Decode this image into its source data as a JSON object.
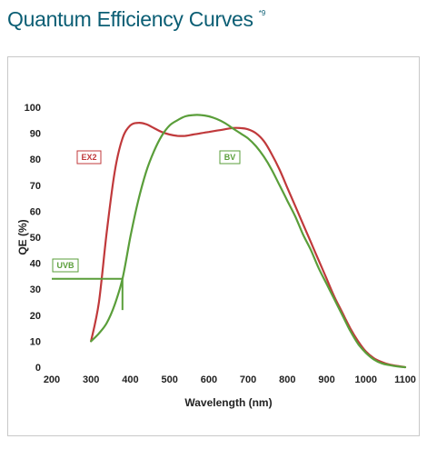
{
  "heading": {
    "title": "Quantum Efficiency Curves",
    "superscript": "*9"
  },
  "colors": {
    "ex2": "#c0393b",
    "bv": "#5a9e3a",
    "uvb": "#5a9e3a",
    "title": "#0b5e74"
  },
  "chart_data": {
    "type": "line",
    "title": "Quantum Efficiency Curves",
    "xlabel": "Wavelength (nm)",
    "ylabel": "QE (%)",
    "xlim": [
      200,
      1100
    ],
    "ylim": [
      0,
      100
    ],
    "xticks": [
      200,
      300,
      400,
      500,
      600,
      700,
      800,
      900,
      1000,
      1100
    ],
    "yticks": [
      0,
      10,
      20,
      30,
      40,
      50,
      60,
      70,
      80,
      90,
      100
    ],
    "grid": false,
    "series": [
      {
        "name": "EX2",
        "color": "#c0393b",
        "points": [
          [
            300,
            10
          ],
          [
            320,
            25
          ],
          [
            340,
            52
          ],
          [
            360,
            75
          ],
          [
            380,
            88
          ],
          [
            400,
            93
          ],
          [
            420,
            94
          ],
          [
            440,
            93.5
          ],
          [
            460,
            92
          ],
          [
            480,
            90.5
          ],
          [
            500,
            89.5
          ],
          [
            520,
            89
          ],
          [
            540,
            89
          ],
          [
            560,
            89.5
          ],
          [
            580,
            90
          ],
          [
            600,
            90.5
          ],
          [
            620,
            91
          ],
          [
            640,
            91.5
          ],
          [
            660,
            92
          ],
          [
            680,
            92
          ],
          [
            700,
            91.5
          ],
          [
            720,
            90
          ],
          [
            740,
            87
          ],
          [
            760,
            82
          ],
          [
            780,
            76
          ],
          [
            800,
            69
          ],
          [
            820,
            62
          ],
          [
            840,
            55
          ],
          [
            860,
            48
          ],
          [
            880,
            41
          ],
          [
            900,
            34
          ],
          [
            920,
            27
          ],
          [
            940,
            21
          ],
          [
            960,
            15
          ],
          [
            980,
            10
          ],
          [
            1000,
            6
          ],
          [
            1020,
            3.5
          ],
          [
            1040,
            2
          ],
          [
            1060,
            1
          ],
          [
            1080,
            0.5
          ],
          [
            1100,
            0
          ]
        ]
      },
      {
        "name": "BV",
        "color": "#5a9e3a",
        "points": [
          [
            300,
            10
          ],
          [
            320,
            13
          ],
          [
            340,
            17
          ],
          [
            360,
            24
          ],
          [
            380,
            34
          ],
          [
            400,
            50
          ],
          [
            420,
            64
          ],
          [
            440,
            75
          ],
          [
            460,
            83
          ],
          [
            480,
            89
          ],
          [
            500,
            93
          ],
          [
            520,
            95
          ],
          [
            540,
            96.5
          ],
          [
            560,
            97
          ],
          [
            580,
            97
          ],
          [
            600,
            96.5
          ],
          [
            620,
            95.5
          ],
          [
            640,
            94
          ],
          [
            660,
            92
          ],
          [
            680,
            90
          ],
          [
            700,
            88
          ],
          [
            720,
            85
          ],
          [
            740,
            81
          ],
          [
            760,
            76
          ],
          [
            780,
            70
          ],
          [
            800,
            64
          ],
          [
            820,
            58
          ],
          [
            840,
            51
          ],
          [
            860,
            45
          ],
          [
            880,
            38
          ],
          [
            900,
            32
          ],
          [
            920,
            26
          ],
          [
            940,
            20
          ],
          [
            960,
            14
          ],
          [
            980,
            9
          ],
          [
            1000,
            5.5
          ],
          [
            1020,
            3
          ],
          [
            1040,
            1.5
          ],
          [
            1060,
            0.8
          ],
          [
            1080,
            0.3
          ],
          [
            1100,
            0
          ]
        ]
      },
      {
        "name": "UVB",
        "color": "#5a9e3a",
        "points": [
          [
            200,
            34
          ],
          [
            380,
            34
          ],
          [
            380,
            22
          ]
        ]
      }
    ],
    "annotations": [
      {
        "text": "EX2",
        "series": "EX2"
      },
      {
        "text": "BV",
        "series": "BV"
      },
      {
        "text": "UVB",
        "series": "UVB"
      }
    ]
  }
}
